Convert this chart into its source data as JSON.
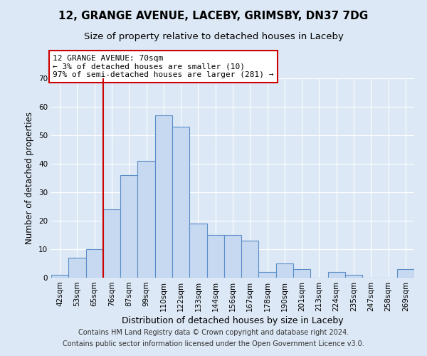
{
  "title": "12, GRANGE AVENUE, LACEBY, GRIMSBY, DN37 7DG",
  "subtitle": "Size of property relative to detached houses in Laceby",
  "xlabel": "Distribution of detached houses by size in Laceby",
  "ylabel": "Number of detached properties",
  "bar_labels": [
    "42sqm",
    "53sqm",
    "65sqm",
    "76sqm",
    "87sqm",
    "99sqm",
    "110sqm",
    "122sqm",
    "133sqm",
    "144sqm",
    "156sqm",
    "167sqm",
    "178sqm",
    "190sqm",
    "201sqm",
    "213sqm",
    "224sqm",
    "235sqm",
    "247sqm",
    "258sqm",
    "269sqm"
  ],
  "bar_values": [
    1,
    7,
    10,
    24,
    36,
    41,
    57,
    53,
    19,
    15,
    15,
    13,
    2,
    5,
    3,
    0,
    2,
    1,
    0,
    0,
    3
  ],
  "bar_color": "#c6d9f1",
  "bar_edge_color": "#5b8dc8",
  "vline_x": 2,
  "vline_color": "#cc0000",
  "annotation_text": "12 GRANGE AVENUE: 70sqm\n← 3% of detached houses are smaller (10)\n97% of semi-detached houses are larger (281) →",
  "annotation_box_facecolor": "#ffffff",
  "annotation_box_edgecolor": "#cc0000",
  "ylim": [
    0,
    70
  ],
  "yticks": [
    0,
    10,
    20,
    30,
    40,
    50,
    60,
    70
  ],
  "footer_line1": "Contains HM Land Registry data © Crown copyright and database right 2024.",
  "footer_line2": "Contains public sector information licensed under the Open Government Licence v3.0.",
  "bg_color": "#dce8f5",
  "plot_bg_color": "#dce8f5",
  "grid_color": "#ffffff",
  "title_fontsize": 11,
  "subtitle_fontsize": 9.5,
  "axis_label_fontsize": 9,
  "tick_fontsize": 7.5,
  "footer_fontsize": 7,
  "annotation_fontsize": 8,
  "ylabel_fontsize": 8.5
}
